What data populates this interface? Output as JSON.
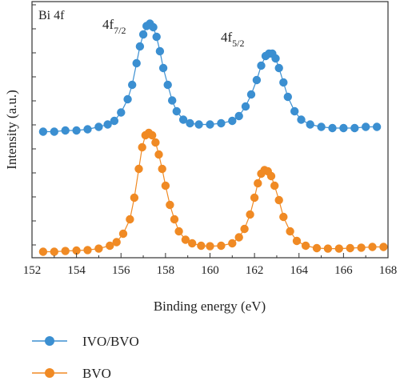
{
  "chart_data": {
    "type": "scatter",
    "title": "",
    "panel_label": "Bi 4f",
    "xlabel": "Binding energy (eV)",
    "ylabel": "Intensity (a.u.)",
    "xlim": [
      152,
      168
    ],
    "ylim": [
      0,
      1
    ],
    "xticks": [
      "152",
      "154",
      "156",
      "158",
      "160",
      "162",
      "164",
      "166",
      "168"
    ],
    "grid": false,
    "legend_position": "bottom-left",
    "annotations": [
      {
        "base": "4f",
        "sub": "7/2",
        "x": 157.2
      },
      {
        "base": "4f",
        "sub": "5/2",
        "x": 162.8
      }
    ],
    "series": [
      {
        "name": "IVO/BVO",
        "color": "#3b8fd1",
        "x": [
          152.5,
          153.0,
          153.5,
          154.0,
          154.5,
          155.0,
          155.4,
          155.7,
          156.0,
          156.3,
          156.5,
          156.7,
          156.85,
          157.0,
          157.15,
          157.3,
          157.45,
          157.6,
          157.75,
          157.9,
          158.1,
          158.3,
          158.5,
          158.8,
          159.1,
          159.5,
          160.0,
          160.5,
          161.0,
          161.3,
          161.6,
          161.85,
          162.1,
          162.3,
          162.5,
          162.65,
          162.8,
          162.95,
          163.1,
          163.3,
          163.5,
          163.8,
          164.1,
          164.5,
          165.0,
          165.5,
          166.0,
          166.5,
          167.0,
          167.5
        ],
        "y": [
          0.505,
          0.505,
          0.51,
          0.51,
          0.515,
          0.525,
          0.535,
          0.55,
          0.585,
          0.64,
          0.7,
          0.79,
          0.86,
          0.91,
          0.945,
          0.955,
          0.94,
          0.9,
          0.84,
          0.77,
          0.7,
          0.635,
          0.59,
          0.555,
          0.54,
          0.535,
          0.535,
          0.54,
          0.55,
          0.57,
          0.61,
          0.66,
          0.72,
          0.78,
          0.82,
          0.83,
          0.83,
          0.81,
          0.77,
          0.71,
          0.65,
          0.59,
          0.555,
          0.535,
          0.525,
          0.52,
          0.52,
          0.52,
          0.525,
          0.525
        ]
      },
      {
        "name": "BVO",
        "color": "#f08a24",
        "x": [
          152.5,
          153.0,
          153.5,
          154.0,
          154.5,
          155.0,
          155.5,
          155.8,
          156.1,
          156.4,
          156.6,
          156.8,
          156.95,
          157.1,
          157.25,
          157.4,
          157.55,
          157.7,
          157.85,
          158.0,
          158.2,
          158.4,
          158.6,
          158.9,
          159.2,
          159.6,
          160.0,
          160.5,
          161.0,
          161.3,
          161.55,
          161.8,
          162.0,
          162.15,
          162.3,
          162.45,
          162.6,
          162.75,
          162.9,
          163.1,
          163.3,
          163.6,
          163.9,
          164.3,
          164.8,
          165.3,
          165.8,
          166.3,
          166.8,
          167.3,
          167.8
        ],
        "y": [
          0.005,
          0.005,
          0.008,
          0.01,
          0.012,
          0.018,
          0.03,
          0.045,
          0.08,
          0.14,
          0.23,
          0.35,
          0.44,
          0.49,
          0.5,
          0.49,
          0.46,
          0.41,
          0.35,
          0.28,
          0.2,
          0.14,
          0.09,
          0.055,
          0.04,
          0.03,
          0.028,
          0.03,
          0.04,
          0.065,
          0.1,
          0.16,
          0.23,
          0.29,
          0.33,
          0.345,
          0.34,
          0.32,
          0.28,
          0.22,
          0.15,
          0.09,
          0.05,
          0.03,
          0.02,
          0.018,
          0.018,
          0.02,
          0.022,
          0.025,
          0.025
        ]
      }
    ]
  }
}
